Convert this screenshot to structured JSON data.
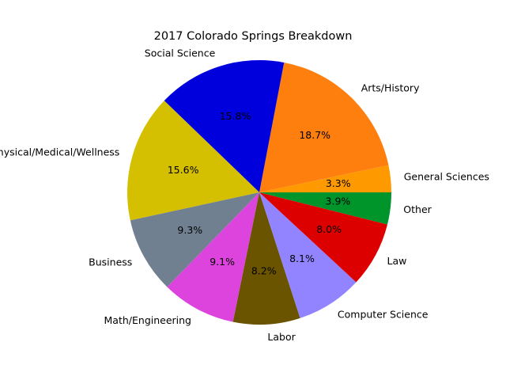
{
  "chart_data": {
    "type": "pie",
    "title": "2017 Colorado Springs Breakdown",
    "categories": [
      "General Sciences",
      "Arts/History",
      "Social Science",
      "Physical/Medical/Wellness",
      "Business",
      "Math/Engineering",
      "Labor",
      "Computer Science",
      "Law",
      "Other"
    ],
    "values": [
      3.3,
      18.7,
      15.8,
      15.6,
      9.3,
      9.1,
      8.2,
      8.1,
      8.0,
      3.9
    ],
    "percent_labels": [
      "3.3%",
      "18.7%",
      "15.8%",
      "15.6%",
      "9.3%",
      "9.1%",
      "8.2%",
      "8.1%",
      "8.0%",
      "3.9%"
    ],
    "colors": [
      "#ff9900",
      "#ff7f0e",
      "#0000dd",
      "#d4c000",
      "#708090",
      "#dd44dd",
      "#6b5400",
      "#9283ff",
      "#dd0000",
      "#00952a"
    ],
    "start_angle_deg": 0,
    "direction": "counterclockwise"
  }
}
